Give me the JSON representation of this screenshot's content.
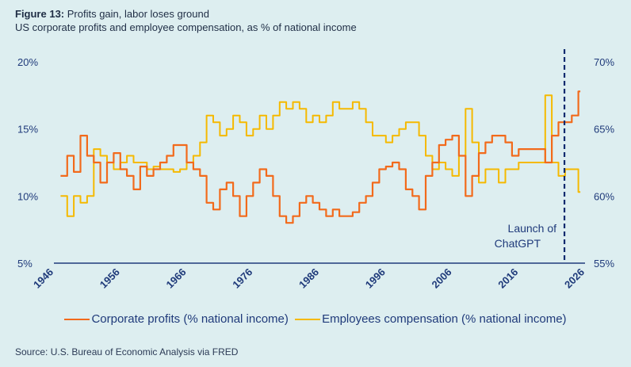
{
  "header": {
    "figure_label": "Figure 13:",
    "title": "Profits gain, labor loses ground",
    "subtitle": "US corporate profits and employee compensation, as % of national income"
  },
  "source": "Source: U.S. Bureau of Economic Analysis via FRED",
  "chart_data": {
    "type": "line",
    "left_axis": {
      "ticks": [
        "20%",
        "15%",
        "10%",
        "5%"
      ],
      "values": [
        20,
        15,
        10,
        5
      ],
      "range": [
        5,
        20
      ]
    },
    "right_axis": {
      "ticks": [
        "70%",
        "65%",
        "60%",
        "55%"
      ],
      "values": [
        70,
        65,
        60,
        55
      ],
      "range": [
        55,
        70
      ]
    },
    "x_axis": {
      "ticks": [
        "1946",
        "1956",
        "1966",
        "1976",
        "1986",
        "1996",
        "2006",
        "2016",
        "2026"
      ],
      "values": [
        1946,
        1956,
        1966,
        1976,
        1986,
        1996,
        2006,
        2016,
        2026
      ],
      "range": [
        1946,
        2026
      ]
    },
    "annotation": {
      "line1": "Launch of",
      "line2": "ChatGPT",
      "x": 2022.9
    },
    "colors": {
      "profits": "#f26a1b",
      "compensation": "#f5b900",
      "axis": "#1f3a7a",
      "marker": "#0d2a6e"
    },
    "series": [
      {
        "name": "Corporate profits (% national income)",
        "axis": "left",
        "x": [
          1947,
          1948,
          1949,
          1950,
          1951,
          1952,
          1953,
          1954,
          1955,
          1956,
          1957,
          1958,
          1959,
          1960,
          1961,
          1962,
          1963,
          1964,
          1965,
          1966,
          1967,
          1968,
          1969,
          1970,
          1971,
          1972,
          1973,
          1974,
          1975,
          1976,
          1977,
          1978,
          1979,
          1980,
          1981,
          1982,
          1983,
          1984,
          1985,
          1986,
          1987,
          1988,
          1989,
          1990,
          1991,
          1992,
          1993,
          1994,
          1995,
          1996,
          1997,
          1998,
          1999,
          2000,
          2001,
          2002,
          2003,
          2004,
          2005,
          2006,
          2007,
          2008,
          2009,
          2010,
          2011,
          2012,
          2013,
          2014,
          2015,
          2016,
          2017,
          2018,
          2019,
          2020,
          2021,
          2022,
          2023,
          2024,
          2025
        ],
        "values": [
          11.5,
          13,
          11.8,
          14.5,
          13,
          12.5,
          11,
          12.5,
          13.2,
          12,
          11.5,
          10.5,
          12.2,
          11.5,
          12,
          12.5,
          13,
          13.8,
          13.8,
          12.5,
          12,
          11.5,
          9.5,
          9,
          10.5,
          11,
          10,
          8.5,
          10,
          11,
          12,
          11.5,
          10,
          8.5,
          8,
          8.5,
          9.5,
          10,
          9.5,
          9,
          8.5,
          9,
          8.5,
          8.5,
          8.8,
          9.5,
          10,
          11,
          12,
          12.2,
          12.5,
          12,
          10.5,
          10,
          9,
          11.5,
          12.5,
          13.8,
          14.2,
          14.5,
          13,
          10,
          11.5,
          13.2,
          14,
          14.5,
          14.5,
          14,
          13,
          13.5,
          13.5,
          13.5,
          13.5,
          12.5,
          14.5,
          15.5,
          15.5,
          16,
          17.8
        ]
      },
      {
        "name": "Employees compensation (% national income)",
        "axis": "right",
        "x": [
          1947,
          1948,
          1949,
          1950,
          1951,
          1952,
          1953,
          1954,
          1955,
          1956,
          1957,
          1958,
          1959,
          1960,
          1961,
          1962,
          1963,
          1964,
          1965,
          1966,
          1967,
          1968,
          1969,
          1970,
          1971,
          1972,
          1973,
          1974,
          1975,
          1976,
          1977,
          1978,
          1979,
          1980,
          1981,
          1982,
          1983,
          1984,
          1985,
          1986,
          1987,
          1988,
          1989,
          1990,
          1991,
          1992,
          1993,
          1994,
          1995,
          1996,
          1997,
          1998,
          1999,
          2000,
          2001,
          2002,
          2003,
          2004,
          2005,
          2006,
          2007,
          2008,
          2009,
          2010,
          2011,
          2012,
          2013,
          2014,
          2015,
          2016,
          2017,
          2018,
          2019,
          2020,
          2021,
          2022,
          2023,
          2024,
          2025
        ],
        "values": [
          60,
          58.5,
          60,
          59.5,
          60,
          63.5,
          63,
          62.5,
          62,
          62.5,
          63,
          62.5,
          62.5,
          62,
          62.2,
          62,
          62,
          61.8,
          62,
          62.5,
          63,
          64,
          66,
          65.5,
          64.5,
          65,
          66,
          65.5,
          64.5,
          65,
          66,
          65,
          66,
          67,
          66.5,
          67,
          66.5,
          65.5,
          66,
          65.5,
          66,
          67,
          66.5,
          66.5,
          67,
          66.5,
          65.5,
          64.5,
          64.5,
          64,
          64.5,
          65,
          65.5,
          65.5,
          64.5,
          63,
          62,
          62.5,
          62,
          61.5,
          63,
          66.5,
          64,
          61,
          62,
          62,
          61,
          62,
          62,
          62.5,
          62.5,
          62.5,
          62.5,
          67.5,
          62.5,
          61.5,
          62,
          62,
          60.3
        ]
      }
    ]
  }
}
